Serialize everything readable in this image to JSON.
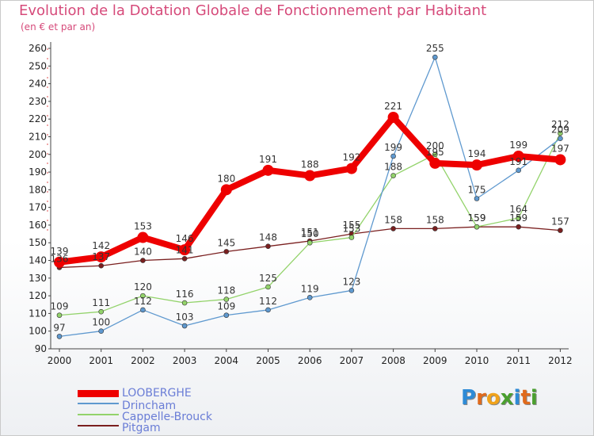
{
  "header": {
    "title": "Evolution de la Dotation Globale de Fonctionnement par Habitant",
    "subtitle": "(en € et par an)"
  },
  "chart_data": {
    "type": "line",
    "title": "Evolution de la Dotation Globale de Fonctionnement par Habitant",
    "subtitle": "(en € et par an)",
    "xlabel": "",
    "ylabel": "",
    "x": [
      "2000",
      "2001",
      "2002",
      "2003",
      "2004",
      "2005",
      "2006",
      "2007",
      "2008",
      "2009",
      "2010",
      "2011",
      "2012"
    ],
    "ylim": [
      90,
      260
    ],
    "yticks": [
      90,
      100,
      110,
      120,
      130,
      140,
      150,
      160,
      170,
      180,
      190,
      200,
      210,
      220,
      230,
      240,
      250,
      260
    ],
    "grid": false,
    "legend_position": "bottom-left",
    "series": [
      {
        "name": "Pitgam",
        "color": "#7a1f1f",
        "values": [
          136,
          137,
          140,
          141,
          145,
          148,
          151,
          155,
          158,
          158,
          159,
          159,
          157
        ],
        "labels": [
          "136",
          "137",
          "140",
          "141",
          "145",
          "148",
          "151",
          "155",
          "158",
          "158",
          "159",
          "159",
          "157"
        ]
      },
      {
        "name": "Cappelle-Brouck",
        "color": "#93d36b",
        "values": [
          109,
          111,
          120,
          116,
          118,
          125,
          150,
          153,
          188,
          200,
          159,
          164,
          212
        ],
        "labels": [
          "109",
          "111",
          "120",
          "116",
          "118",
          "125",
          "150",
          "153",
          "188",
          "200",
          "159",
          "164",
          "212"
        ]
      },
      {
        "name": "Drincham",
        "color": "#5f99cf",
        "values": [
          97,
          100,
          112,
          103,
          109,
          112,
          119,
          123,
          199,
          255,
          175,
          191,
          209
        ],
        "labels": [
          "97",
          "100",
          "112",
          "103",
          "109",
          "112",
          "119",
          "123",
          "199",
          "255",
          "175",
          "191",
          "209"
        ]
      },
      {
        "name": "LOOBERGHE",
        "color": "#ee0000",
        "values": [
          139,
          142,
          153,
          146,
          180,
          191,
          188,
          192,
          221,
          195,
          194,
          199,
          197
        ],
        "labels": [
          "139",
          "142",
          "153",
          "146",
          "180",
          "191",
          "188",
          "192",
          "221",
          "195",
          "194",
          "199",
          "197"
        ]
      }
    ]
  },
  "legend": {
    "items": [
      {
        "label": "LOOBERGHE",
        "color": "#ee0000"
      },
      {
        "label": "Drincham",
        "color": "#5f99cf"
      },
      {
        "label": "Cappelle-Brouck",
        "color": "#93d36b"
      },
      {
        "label": "Pitgam",
        "color": "#7a1f1f"
      }
    ]
  },
  "logo": {
    "letters": [
      "P",
      "r",
      "o",
      "x",
      "i",
      "t",
      "i"
    ],
    "colors": [
      "#2e8bd6",
      "#e06a1c",
      "#f0a21b",
      "#4a9f2f",
      "#2e8bd6",
      "#e06a1c",
      "#4a9f2f"
    ]
  }
}
